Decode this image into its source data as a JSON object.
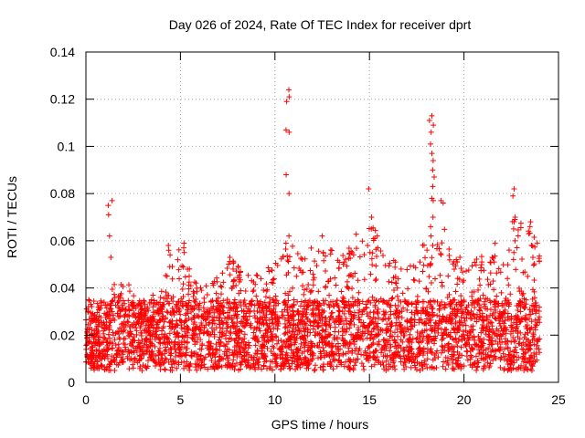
{
  "chart_data": {
    "type": "scatter",
    "title": "Day 026 of 2024, Rate Of TEC Index for receiver dprt",
    "xlabel": "GPS time / hours",
    "ylabel": "ROTI / TECUs",
    "xlim": [
      0,
      25
    ],
    "ylim": [
      0,
      0.14
    ],
    "x_ticks": [
      0,
      5,
      10,
      15,
      20,
      25
    ],
    "y_ticks": [
      0,
      0.02,
      0.04,
      0.06,
      0.08,
      0.1,
      0.12,
      0.14
    ],
    "x_tick_labels": [
      "0",
      "5",
      "10",
      "15",
      "20",
      "25"
    ],
    "y_tick_labels": [
      "0",
      "0.02",
      "0.04",
      "0.06",
      "0.08",
      "0.1",
      "0.12",
      "0.14"
    ],
    "grid": true,
    "marker": "+",
    "series_color": "#ff0000",
    "data_x_range": [
      0,
      24
    ],
    "baseline_band": [
      0.005,
      0.035
    ],
    "envelope": [
      [
        0,
        0.025
      ],
      [
        1,
        0.03
      ],
      [
        1.3,
        0.04
      ],
      [
        2,
        0.045
      ],
      [
        3,
        0.035
      ],
      [
        4,
        0.04
      ],
      [
        4.4,
        0.055
      ],
      [
        5,
        0.057
      ],
      [
        6,
        0.04
      ],
      [
        7,
        0.045
      ],
      [
        7.7,
        0.053
      ],
      [
        8.5,
        0.045
      ],
      [
        9,
        0.05
      ],
      [
        10,
        0.05
      ],
      [
        10.7,
        0.06
      ],
      [
        11.5,
        0.055
      ],
      [
        12.5,
        0.06
      ],
      [
        13.5,
        0.058
      ],
      [
        14,
        0.06
      ],
      [
        15,
        0.07
      ],
      [
        16,
        0.055
      ],
      [
        17,
        0.05
      ],
      [
        18,
        0.06
      ],
      [
        19,
        0.07
      ],
      [
        19.5,
        0.053
      ],
      [
        20.5,
        0.05
      ],
      [
        21,
        0.06
      ],
      [
        22,
        0.06
      ],
      [
        22.6,
        0.07
      ],
      [
        23.5,
        0.065
      ],
      [
        24,
        0.06
      ]
    ],
    "spikes": [
      {
        "x": 1.3,
        "values": [
          0.077,
          0.075,
          0.071,
          0.062,
          0.053
        ]
      },
      {
        "x": 4.4,
        "values": [
          0.058,
          0.056,
          0.054,
          0.049
        ]
      },
      {
        "x": 5.1,
        "values": [
          0.059,
          0.057,
          0.055
        ]
      },
      {
        "x": 7.7,
        "values": [
          0.053,
          0.051,
          0.048
        ]
      },
      {
        "x": 10.7,
        "values": [
          0.124,
          0.121,
          0.119,
          0.107,
          0.106,
          0.088,
          0.08,
          0.062,
          0.059
        ]
      },
      {
        "x": 12.5,
        "values": [
          0.062,
          0.055
        ]
      },
      {
        "x": 15.0,
        "values": [
          0.082,
          0.07,
          0.065,
          0.058,
          0.055
        ]
      },
      {
        "x": 18.3,
        "values": [
          0.113,
          0.111,
          0.109,
          0.106,
          0.101,
          0.097,
          0.094,
          0.09,
          0.087,
          0.083,
          0.078,
          0.077,
          0.07,
          0.066,
          0.062,
          0.058,
          0.05
        ]
      },
      {
        "x": 18.9,
        "values": [
          0.077,
          0.076
        ]
      },
      {
        "x": 19.7,
        "values": [
          0.053,
          0.052,
          0.051
        ]
      },
      {
        "x": 22.7,
        "values": [
          0.082,
          0.079,
          0.07,
          0.065,
          0.06,
          0.055
        ]
      },
      {
        "x": 23.6,
        "values": [
          0.068,
          0.066,
          0.058,
          0.053
        ]
      }
    ]
  }
}
